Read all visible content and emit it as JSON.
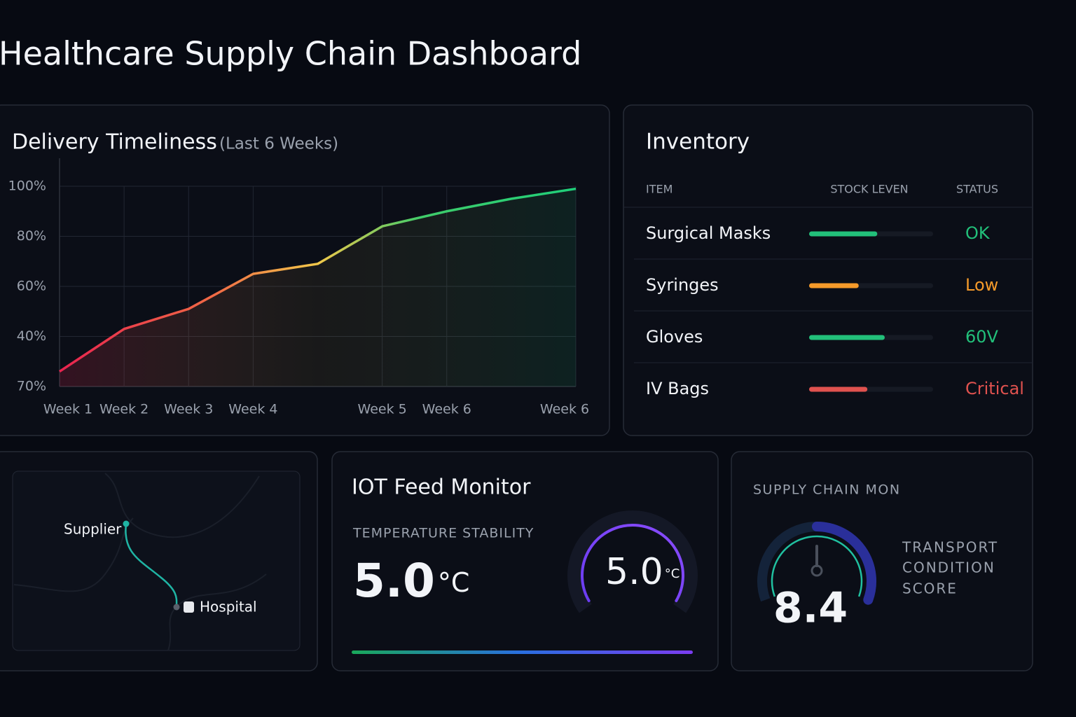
{
  "header": {
    "title": "Healthcare Supply Chain Dashboard"
  },
  "delivery": {
    "type": "line",
    "title": "Delivery Timeliness",
    "subtitle": "(Last 6 Weeks)",
    "categories": [
      "Week 1",
      "Week 2",
      "Week 3",
      "Week 4",
      null,
      "Week 5",
      "Week 6",
      null,
      "Week 6"
    ],
    "values": [
      26,
      43,
      51,
      65,
      69,
      84,
      90,
      95,
      99
    ],
    "ylim": [
      20,
      100
    ],
    "yticks": [
      {
        "value": 100,
        "label": "100%"
      },
      {
        "value": 80,
        "label": "80%"
      },
      {
        "value": 60,
        "label": "60%"
      },
      {
        "value": 40,
        "label": "40%"
      }
    ],
    "y_floor_label": "70%",
    "grid": true
  },
  "inventory": {
    "title": "Inventory",
    "columns": [
      "ITEM",
      "STOCK LEVEN",
      "STATUS"
    ],
    "rows": [
      {
        "item": "Surgical Masks",
        "level": 55,
        "status": "OK",
        "color": "#22c07a"
      },
      {
        "item": "Syringes",
        "level": 40,
        "status": "Low",
        "color": "#f59a2a"
      },
      {
        "item": "Gloves",
        "level": 61,
        "status": "60V",
        "color": "#22c07a"
      },
      {
        "item": "IV Bags",
        "level": 47,
        "status": "Critical",
        "color": "#e0524f"
      }
    ],
    "level_max": 100
  },
  "map": {
    "origin": "Supplier",
    "destination": "Hospital"
  },
  "iot": {
    "title": "IOT Feed Monitor",
    "metric": "TEMPERATURE STABILITY",
    "value": "5.0",
    "unit": "°C",
    "gauge_value": "5.0",
    "gauge_unit": "°C"
  },
  "supply": {
    "title": "SUPPLY CHAIN MON",
    "score": "8.4",
    "label_lines": [
      "TRANSPORT",
      "CONDITION",
      "SCORE"
    ]
  }
}
